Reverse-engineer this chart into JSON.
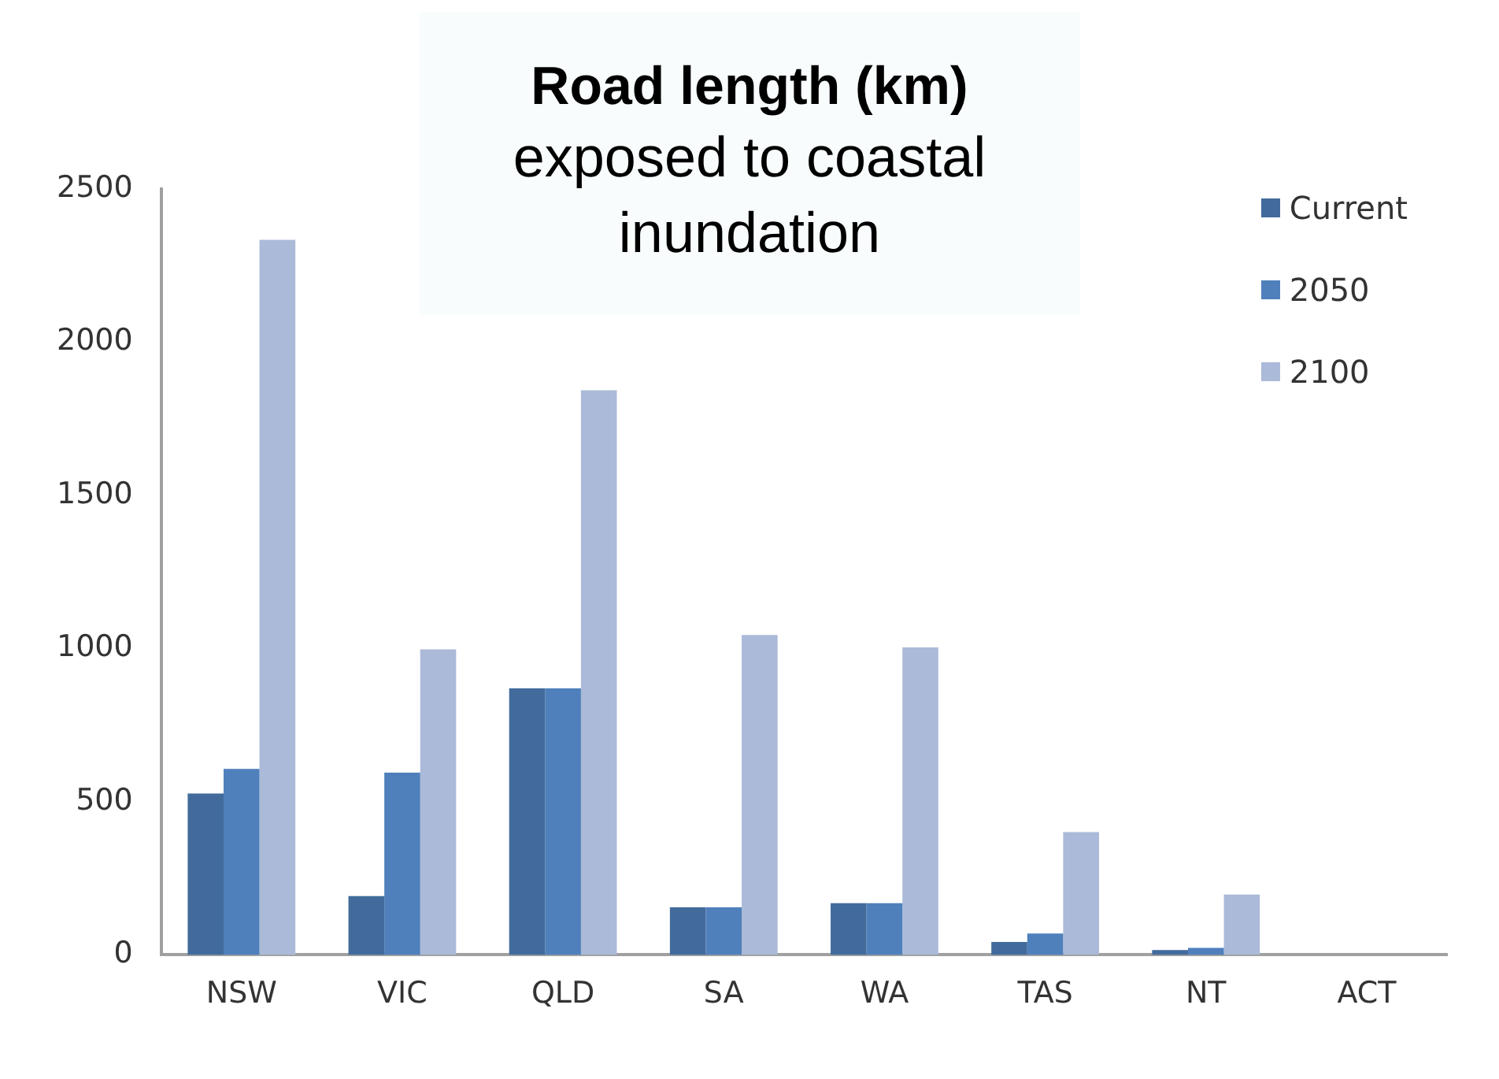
{
  "chart_data": {
    "type": "bar",
    "title": "Road length (km)",
    "subtitle": "exposed to coastal inundation",
    "categories": [
      "NSW",
      "VIC",
      "QLD",
      "SA",
      "WA",
      "TAS",
      "NT",
      "ACT"
    ],
    "series": [
      {
        "name": "Current",
        "color": "#426b9c",
        "values": [
          527,
          192,
          870,
          155,
          169,
          42,
          16,
          0
        ]
      },
      {
        "name": "2050",
        "color": "#4f80bc",
        "values": [
          607,
          595,
          870,
          155,
          169,
          70,
          23,
          0
        ]
      },
      {
        "name": "2100",
        "color": "#abbad8",
        "values": [
          2334,
          997,
          1843,
          1044,
          1004,
          401,
          197,
          0
        ]
      }
    ],
    "ylim": [
      0,
      2500
    ],
    "yticks": [
      0,
      500,
      1000,
      1500,
      2000,
      2500
    ],
    "grid": false,
    "legend": "top right"
  }
}
